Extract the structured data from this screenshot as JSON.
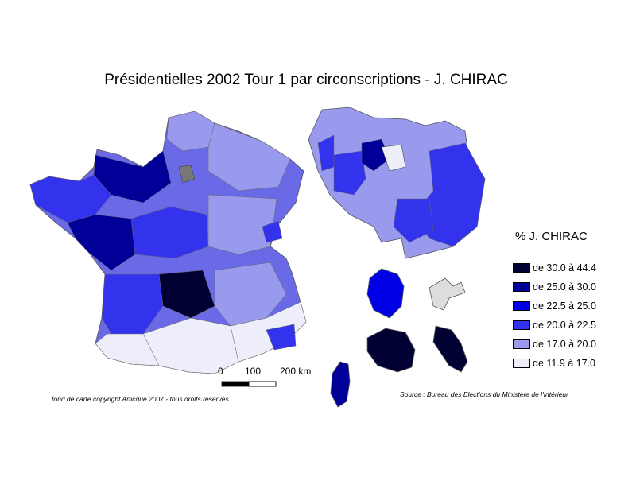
{
  "title": "Présidentielles 2002 Tour 1 par circonscriptions - J. CHIRAC",
  "legend": {
    "title": "% J. CHIRAC",
    "items": [
      {
        "label": "de 30.0 à 44.4",
        "color": "#000033"
      },
      {
        "label": "de 25.0 à 30.0",
        "color": "#000099"
      },
      {
        "label": "de 22.5 à 25.0",
        "color": "#0000e6"
      },
      {
        "label": "de 20.0 à 22.5",
        "color": "#3333ee"
      },
      {
        "label": "de 17.0 à 20.0",
        "color": "#9999ee"
      },
      {
        "label": "de 11.9 à 17.0",
        "color": "#eeeefa"
      }
    ]
  },
  "scale": {
    "label_0": "0",
    "label_100": "100",
    "label_200": "200 km"
  },
  "copyright": "fond de carte copyright Articque 2007 - tous droits réservés",
  "source": "Source : Bureau des Elections du Ministère de l'Intérieur"
}
